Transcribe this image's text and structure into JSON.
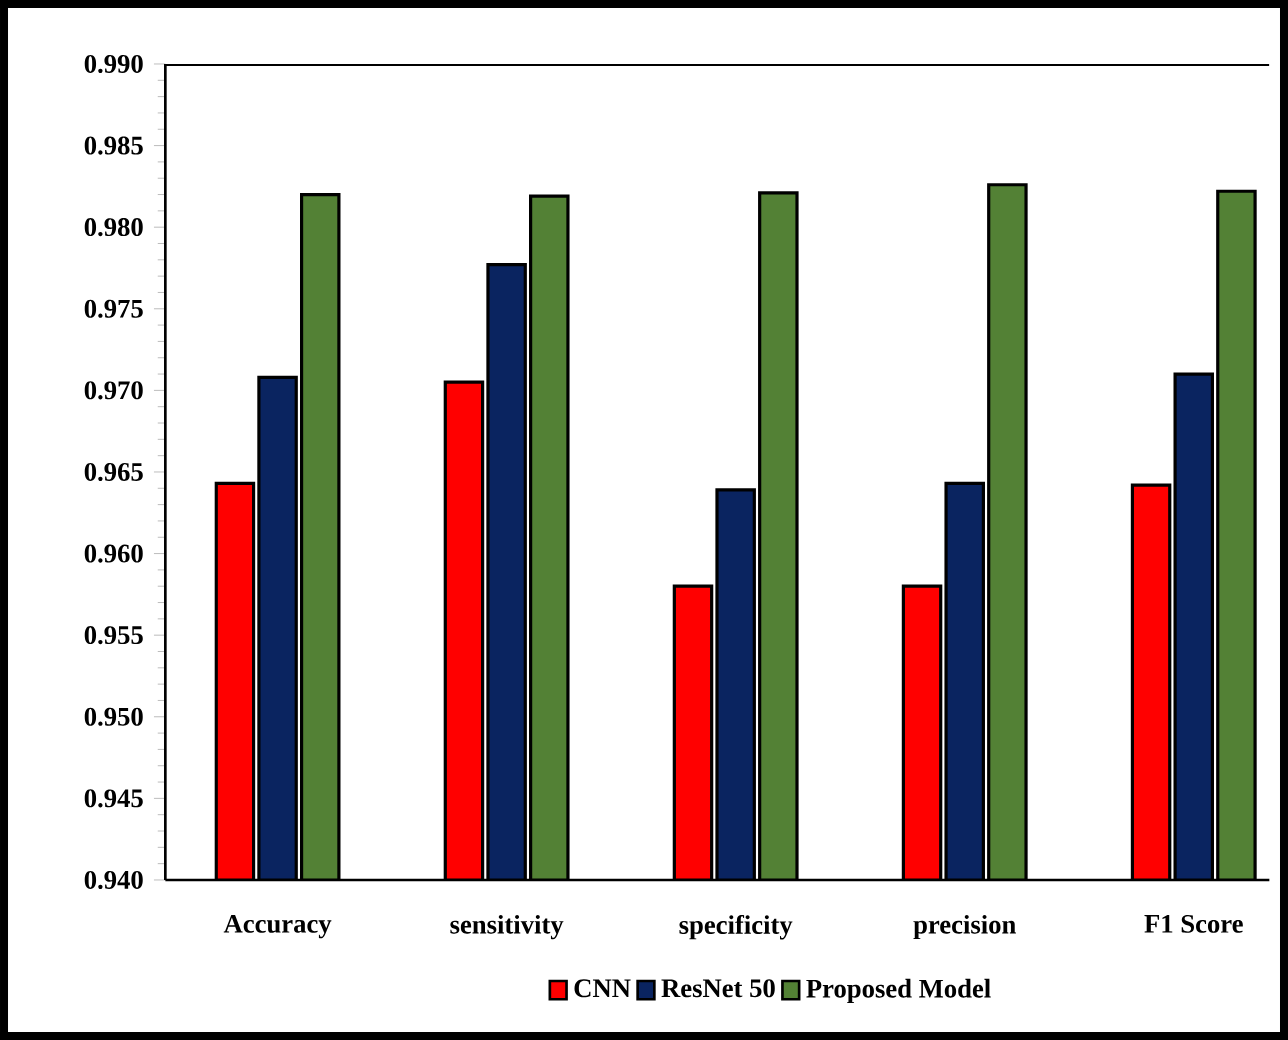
{
  "chart_data": {
    "type": "bar",
    "categories": [
      "Accuracy",
      "sensitivity",
      "specificity",
      "precision",
      "F1 Score"
    ],
    "series": [
      {
        "name": "CNN",
        "color": "#ff0000",
        "values": [
          0.9643,
          0.9705,
          0.958,
          0.958,
          0.9642
        ]
      },
      {
        "name": "ResNet 50",
        "color": "#0a2460",
        "values": [
          0.9708,
          0.9777,
          0.9639,
          0.9643,
          0.971
        ]
      },
      {
        "name": "Proposed Model",
        "color": "#538135",
        "values": [
          0.982,
          0.9819,
          0.9821,
          0.9826,
          0.9822
        ]
      }
    ],
    "ylim": [
      0.94,
      0.99
    ],
    "yticks": [
      {
        "value": 0.94,
        "label": "0.940"
      },
      {
        "value": 0.945,
        "label": "0.945"
      },
      {
        "value": 0.95,
        "label": "0.950"
      },
      {
        "value": 0.955,
        "label": "0.955"
      },
      {
        "value": 0.96,
        "label": "0.960"
      },
      {
        "value": 0.965,
        "label": "0.965"
      },
      {
        "value": 0.97,
        "label": "0.970"
      },
      {
        "value": 0.975,
        "label": "0.975"
      },
      {
        "value": 0.98,
        "label": "0.980"
      },
      {
        "value": 0.985,
        "label": "0.985"
      },
      {
        "value": 0.99,
        "label": "0.990"
      }
    ],
    "grid": false,
    "legend": "bottom"
  }
}
